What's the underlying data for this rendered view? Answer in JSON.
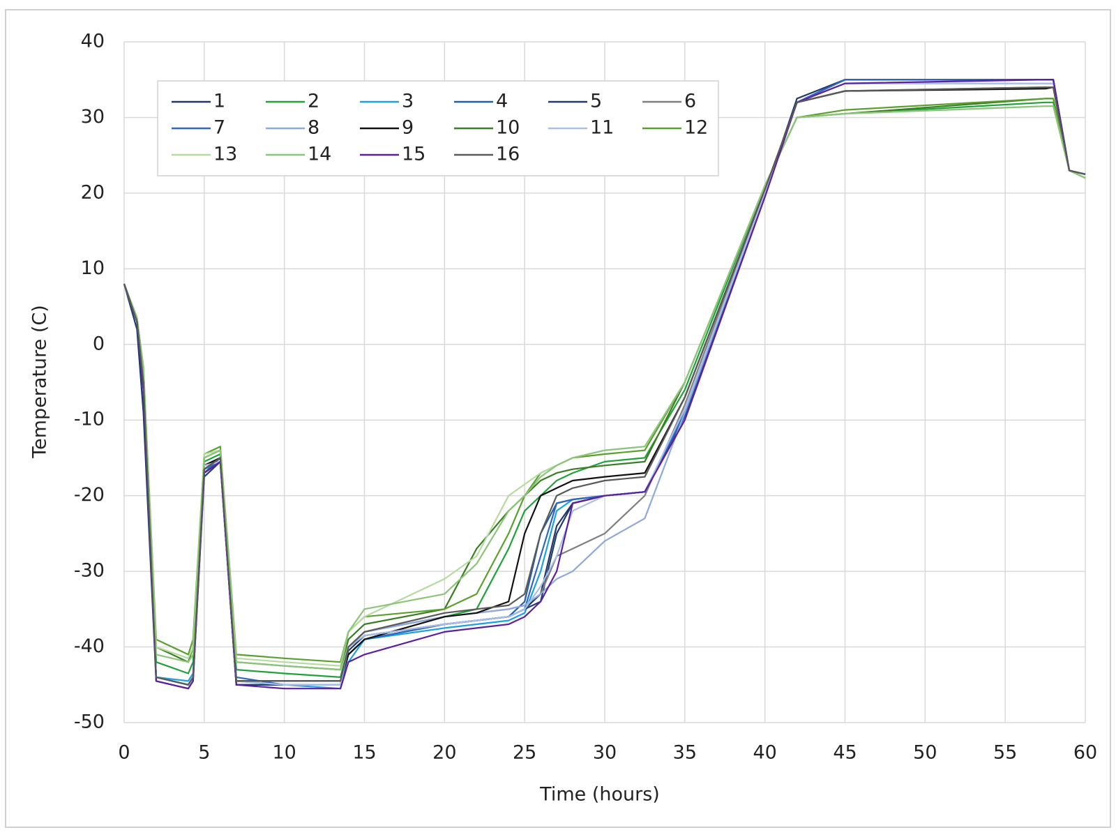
{
  "chart_data": {
    "type": "line",
    "x_label": "Time (hours)",
    "y_label": "Temperature (C)",
    "xlim": [
      0,
      60
    ],
    "ylim": [
      -50,
      40
    ],
    "xticks": [
      0,
      5,
      10,
      15,
      20,
      25,
      30,
      35,
      40,
      45,
      50,
      55,
      60
    ],
    "yticks": [
      -50,
      -40,
      -30,
      -20,
      -10,
      0,
      10,
      20,
      30,
      40
    ],
    "grid": true,
    "legend": "upper left",
    "x": [
      0,
      0.8,
      1.2,
      2,
      4,
      4.3,
      5,
      6,
      7,
      10,
      13.5,
      14,
      15,
      20,
      22,
      24,
      25,
      26,
      27,
      28,
      30,
      32.5,
      35,
      40,
      42,
      45,
      57.5,
      58,
      59,
      60
    ],
    "series": [
      {
        "name": "1",
        "color": "#203864",
        "values": [
          8,
          3,
          -6,
          -44,
          -45,
          -44,
          -17,
          -15.5,
          -45,
          -45,
          -45,
          -40,
          -38.5,
          -37,
          -36.5,
          -36,
          -35,
          -33,
          -24,
          -21,
          -20,
          -19.5,
          -9,
          20,
          32,
          35,
          35,
          35,
          23,
          22.5
        ]
      },
      {
        "name": "2",
        "color": "#1fa23a",
        "values": [
          8,
          3.5,
          -4,
          -42,
          -43.5,
          -42,
          -15.5,
          -14.5,
          -43,
          -43.5,
          -44,
          -40,
          -38,
          -36,
          -35,
          -27,
          -22,
          -20,
          -18,
          -17,
          -15.5,
          -15,
          -6,
          21,
          30,
          30.5,
          32,
          32,
          23,
          22
        ]
      },
      {
        "name": "3",
        "color": "#1ba1e2",
        "values": [
          8,
          3,
          -5,
          -44,
          -44.5,
          -43.5,
          -16.5,
          -15.5,
          -44.5,
          -45,
          -45.5,
          -42,
          -39,
          -37.5,
          -37,
          -36.5,
          -35.5,
          -30,
          -22,
          -20.5,
          -20,
          -19.5,
          -9,
          20.5,
          32,
          35,
          35,
          35,
          23,
          22.5
        ]
      },
      {
        "name": "4",
        "color": "#1f5fad",
        "values": [
          8,
          3,
          -5,
          -44,
          -45,
          -44,
          -17,
          -15.5,
          -45,
          -45,
          -45,
          -41,
          -39,
          -37,
          -36.5,
          -36,
          -34,
          -25,
          -21,
          -20.5,
          -20,
          -19.5,
          -9.5,
          20,
          32,
          35,
          35,
          35,
          23,
          22.5
        ]
      },
      {
        "name": "5",
        "color": "#1f3a6e",
        "values": [
          8,
          2,
          -9,
          -44.5,
          -45.5,
          -44.5,
          -17.5,
          -15.5,
          -45,
          -45,
          -45,
          -40.5,
          -38.5,
          -37,
          -36.5,
          -36,
          -35,
          -34,
          -25,
          -21,
          -20,
          -19.5,
          -9,
          20,
          32.5,
          35,
          35,
          35,
          23,
          22.5
        ]
      },
      {
        "name": "6",
        "color": "#7f7f7f",
        "values": [
          8,
          3,
          -5,
          -44,
          -45,
          -44,
          -16.5,
          -15,
          -44.5,
          -44.5,
          -44.5,
          -40,
          -38,
          -36,
          -35.5,
          -35,
          -34.5,
          -33,
          -28,
          -27,
          -25,
          -20,
          -8,
          20.5,
          32,
          33.5,
          34,
          34,
          23,
          22.5
        ]
      },
      {
        "name": "7",
        "color": "#3066be",
        "values": [
          8,
          3,
          -5,
          -44,
          -45,
          -44,
          -17,
          -15,
          -44,
          -45,
          -45,
          -41,
          -39,
          -37,
          -36.5,
          -36,
          -35,
          -28,
          -21,
          -20.5,
          -20,
          -19.5,
          -9,
          20,
          32,
          35,
          35,
          35,
          23,
          22.5
        ]
      },
      {
        "name": "8",
        "color": "#8ea9db",
        "values": [
          8,
          3,
          -5,
          -44,
          -45,
          -44,
          -16,
          -15.5,
          -44.5,
          -45,
          -45,
          -40,
          -38,
          -36,
          -35.5,
          -35,
          -34.5,
          -33,
          -31,
          -30,
          -26,
          -23,
          -9,
          20,
          32,
          34.5,
          34.5,
          34.5,
          23,
          22.5
        ]
      },
      {
        "name": "9",
        "color": "#111111",
        "values": [
          8,
          3,
          -5,
          -44,
          -45,
          -44,
          -16,
          -15,
          -44.5,
          -44.5,
          -44.5,
          -41,
          -39,
          -36,
          -35.5,
          -34,
          -25,
          -20,
          -19,
          -18,
          -17.5,
          -17,
          -7,
          20.5,
          32,
          33.5,
          33.8,
          34,
          23,
          22.5
        ]
      },
      {
        "name": "10",
        "color": "#3a7d22",
        "values": [
          8,
          3.5,
          -4,
          -40,
          -42,
          -40,
          -15,
          -14,
          -42,
          -42.5,
          -43,
          -39,
          -37,
          -35,
          -27,
          -22,
          -20,
          -18,
          -17,
          -16.5,
          -16,
          -15.5,
          -5,
          21,
          30,
          30.5,
          32.5,
          32.5,
          23,
          22
        ]
      },
      {
        "name": "11",
        "color": "#a9bfe6",
        "values": [
          8,
          3,
          -5,
          -44,
          -45,
          -44,
          -16,
          -15.5,
          -44.5,
          -45,
          -45,
          -40,
          -38.5,
          -37,
          -36.5,
          -36,
          -35,
          -32,
          -28,
          -22,
          -20,
          -19.5,
          -8.5,
          20,
          32,
          34.5,
          34.5,
          34.5,
          23,
          22.5
        ]
      },
      {
        "name": "12",
        "color": "#5aa02c",
        "values": [
          8,
          3.5,
          -3,
          -39,
          -41,
          -39,
          -14.5,
          -13.5,
          -41,
          -41.5,
          -42,
          -38,
          -36,
          -35,
          -33,
          -25,
          -20,
          -17,
          -16,
          -15,
          -14.5,
          -14,
          -5,
          21,
          30,
          31,
          32.5,
          32.5,
          23,
          22
        ]
      },
      {
        "name": "13",
        "color": "#b5dba0",
        "values": [
          8,
          3.5,
          -3,
          -40,
          -41.5,
          -40,
          -14.5,
          -14,
          -41.5,
          -42,
          -42.5,
          -38,
          -36,
          -31,
          -28,
          -20,
          -18.5,
          -17,
          -16,
          -15,
          -14,
          -13.5,
          -5,
          21,
          30,
          30.5,
          31.5,
          31.5,
          23,
          22
        ]
      },
      {
        "name": "14",
        "color": "#8cc47a",
        "values": [
          8,
          3.5,
          -3,
          -41,
          -42,
          -41,
          -15,
          -14,
          -42,
          -42.5,
          -43,
          -38,
          -35,
          -33,
          -29,
          -22,
          -20,
          -17.5,
          -16,
          -15,
          -14,
          -13.5,
          -5,
          21,
          30,
          30.5,
          31.5,
          31.5,
          23,
          22
        ]
      },
      {
        "name": "15",
        "color": "#5b1fa0",
        "values": [
          8,
          3,
          -6,
          -44.5,
          -45.5,
          -44.5,
          -17,
          -15.5,
          -45,
          -45.5,
          -45.5,
          -42,
          -41,
          -38,
          -37.5,
          -37,
          -36,
          -34,
          -30,
          -21,
          -20,
          -19.5,
          -10,
          19.5,
          32,
          34.5,
          35,
          35,
          23,
          22.5
        ]
      },
      {
        "name": "16",
        "color": "#595959",
        "values": [
          8,
          3,
          -5,
          -44,
          -45,
          -44,
          -16.5,
          -15,
          -44.5,
          -44.5,
          -44.5,
          -40,
          -38,
          -35.5,
          -35,
          -34.5,
          -33,
          -25,
          -20,
          -19,
          -18,
          -17.5,
          -7,
          20.5,
          32,
          33.5,
          34,
          34,
          23,
          22.5
        ]
      }
    ]
  }
}
